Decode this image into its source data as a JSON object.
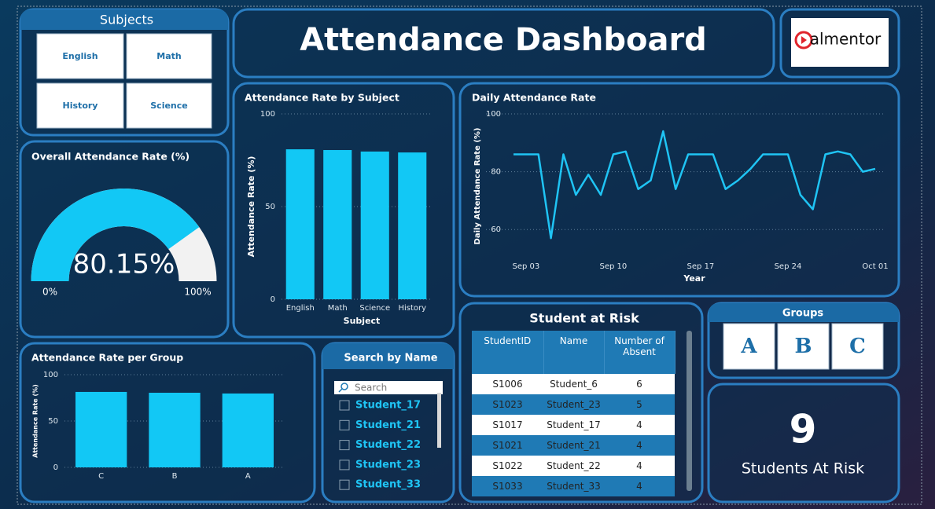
{
  "header": {
    "title": "Attendance Dashboard",
    "logo": "almentor"
  },
  "subjects": {
    "title": "Subjects",
    "items": [
      "English",
      "Math",
      "History",
      "Science"
    ]
  },
  "groups": {
    "title": "Groups",
    "items": [
      "A",
      "B",
      "C"
    ]
  },
  "search": {
    "title": "Search by Name",
    "placeholder": "Search",
    "items": [
      "Student_17",
      "Student_21",
      "Student_22",
      "Student_23",
      "Student_33"
    ]
  },
  "kpi": {
    "value": 9,
    "label": "Students At Risk"
  },
  "table": {
    "title": "Student at Risk",
    "columns": [
      "StudentID",
      "Name",
      "Number of Absent"
    ],
    "rows": [
      [
        "S1006",
        "Student_6",
        6
      ],
      [
        "S1023",
        "Student_23",
        5
      ],
      [
        "S1017",
        "Student_17",
        4
      ],
      [
        "S1021",
        "Student_21",
        4
      ],
      [
        "S1022",
        "Student_22",
        4
      ],
      [
        "S1033",
        "Student_33",
        4
      ]
    ]
  },
  "chart_data": [
    {
      "type": "gauge",
      "title": "Overall Attendance Rate (%)",
      "values": [
        80.15
      ],
      "value_labels": [
        "80.15%"
      ],
      "ylim": [
        0,
        100
      ],
      "yticks": [
        {
          "value": 0,
          "label": "0%"
        },
        {
          "value": 100,
          "label": "100%"
        }
      ],
      "color": "#12c8f5"
    },
    {
      "type": "bar",
      "title": "Attendance Rate by Subject",
      "x_label": "Subject",
      "y_label": "Attendance Rate (%)",
      "categories": [
        "English",
        "Math",
        "Science",
        "History"
      ],
      "values": [
        80.9,
        80.5,
        79.7,
        79.2
      ],
      "ylim": [
        0,
        100
      ],
      "yticks": [
        0,
        50,
        100
      ],
      "grid": true,
      "color": "#12c8f5"
    },
    {
      "type": "line",
      "title": "Daily Attendance Rate",
      "x_label": "Year",
      "y_label": "Daily Attendance Rate (%)",
      "x": [
        "Sep 02",
        "Sep 03",
        "Sep 04",
        "Sep 05",
        "Sep 06",
        "Sep 07",
        "Sep 08",
        "Sep 09",
        "Sep 10",
        "Sep 11",
        "Sep 12",
        "Sep 13",
        "Sep 14",
        "Sep 15",
        "Sep 16",
        "Sep 17",
        "Sep 18",
        "Sep 19",
        "Sep 20",
        "Sep 21",
        "Sep 22",
        "Sep 23",
        "Sep 24",
        "Sep 25",
        "Sep 26",
        "Sep 27",
        "Sep 28",
        "Sep 29",
        "Sep 30",
        "Oct 01"
      ],
      "values": [
        86,
        86,
        86,
        57,
        86,
        72,
        79,
        72,
        86,
        87,
        74,
        77,
        94,
        74,
        86,
        86,
        86,
        74,
        77,
        81,
        86,
        86,
        86,
        72,
        67,
        86,
        87,
        86,
        80,
        81
      ],
      "xlim": [
        "Sep 02",
        "Oct 01"
      ],
      "xticks": [
        "Sep 03",
        "Sep 10",
        "Sep 17",
        "Sep 24",
        "Oct 01"
      ],
      "ylim": [
        50,
        100
      ],
      "yticks": [
        60,
        80,
        100
      ],
      "grid": true,
      "color": "#1fc4f4"
    },
    {
      "type": "bar",
      "title": "Attendance Rate per Group",
      "y_label": "Attendance Rate (%)",
      "categories": [
        "C",
        "B",
        "A"
      ],
      "values": [
        81.4,
        80.5,
        79.7
      ],
      "ylim": [
        0,
        100
      ],
      "yticks": [
        0,
        50,
        100
      ],
      "grid": true,
      "color": "#12c8f5"
    }
  ]
}
